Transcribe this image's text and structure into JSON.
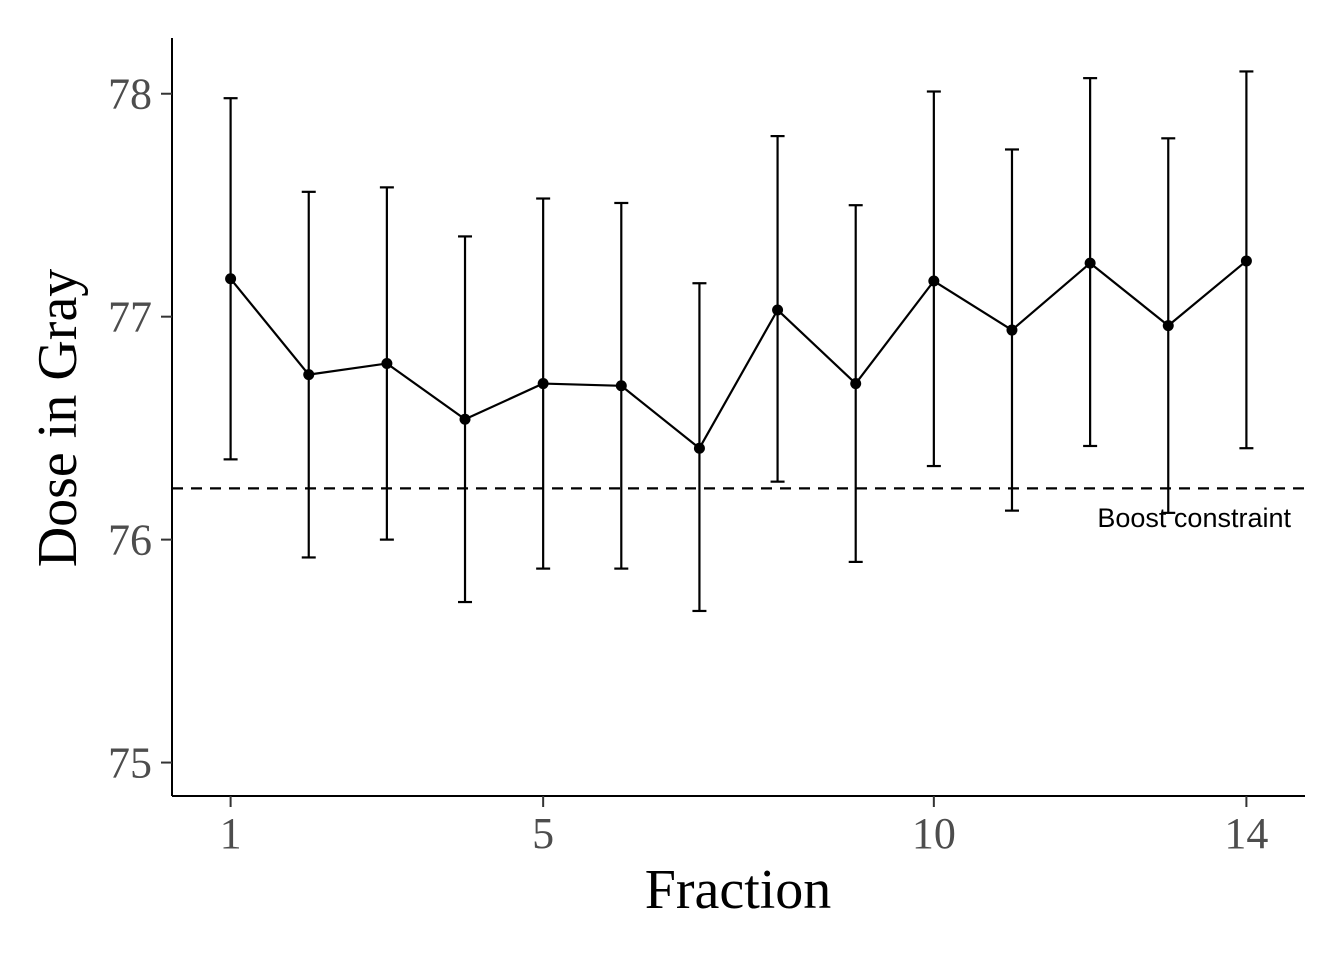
{
  "chart_data": {
    "type": "line",
    "title": "",
    "xlabel": "Fraction",
    "ylabel": "Dose in Gray",
    "x": [
      1,
      2,
      3,
      4,
      5,
      6,
      7,
      8,
      9,
      10,
      11,
      12,
      13,
      14
    ],
    "x_ticks": [
      1,
      5,
      10,
      14
    ],
    "y_ticks": [
      75,
      76,
      77,
      78
    ],
    "xlim": [
      0.25,
      14.75
    ],
    "ylim": [
      74.85,
      78.25
    ],
    "series": [
      {
        "values": [
          77.17,
          76.74,
          76.79,
          76.54,
          76.7,
          76.69,
          76.41,
          77.03,
          76.7,
          77.16,
          76.94,
          77.24,
          76.96,
          77.25
        ],
        "lower": [
          76.36,
          75.92,
          76.0,
          75.72,
          75.87,
          75.87,
          75.68,
          76.26,
          75.9,
          76.33,
          76.13,
          76.42,
          76.12,
          76.41
        ],
        "upper": [
          77.98,
          77.56,
          77.58,
          77.36,
          77.53,
          77.51,
          77.15,
          77.81,
          77.5,
          78.01,
          77.75,
          78.07,
          77.8,
          78.1
        ],
        "color": "#000000",
        "markers": "filled-circle",
        "error_bars": true
      }
    ],
    "reference_line": {
      "y": 76.23,
      "style": "dashed",
      "label": "Boost constraint",
      "color": "#000000"
    },
    "grid": false,
    "legend": "none"
  }
}
